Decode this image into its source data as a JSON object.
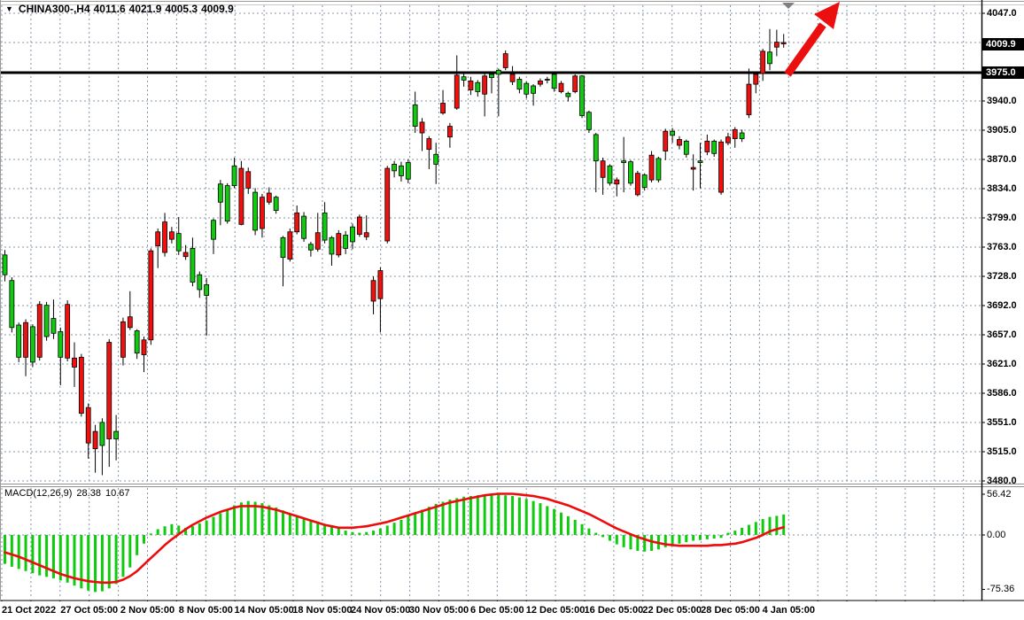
{
  "window": {
    "dropdown_icon": "triangle-down",
    "symbol_period": "CHINA300-,H4",
    "ohlc": {
      "open": "4011.6",
      "high": "4021.9",
      "low": "4005.3",
      "close": "4009.9"
    }
  },
  "price_axis": {
    "ticks": [
      "4047.0",
      "3940.0",
      "3905.0",
      "3870.0",
      "3834.0",
      "3799.0",
      "3763.0",
      "3728.0",
      "3692.0",
      "3657.0",
      "3621.0",
      "3586.0",
      "3551.0",
      "3515.0",
      "3480.0"
    ],
    "tick_rows": [
      0,
      3,
      4,
      5,
      6,
      7,
      8,
      9,
      10,
      11,
      12,
      13,
      14,
      15,
      16
    ],
    "highlighted": [
      {
        "text": "4009.9",
        "price": 4009.9,
        "role": "last-price"
      },
      {
        "text": "3975.0",
        "price": 3975.0,
        "role": "line-level"
      }
    ]
  },
  "indicator_panel": {
    "name": "MACD(12,26,9)",
    "value_main": "28.38",
    "value_signal": "10.67",
    "axis_labels": [
      {
        "text": "56.42",
        "value": 56.42
      },
      {
        "text": "0.00",
        "value": 0
      },
      {
        "text": "-75.36",
        "value": -75.36
      }
    ]
  },
  "time_axis": {
    "labels": [
      "21 Oct 2022",
      "27 Oct 05:00",
      "2 Nov 05:00",
      "8 Nov 05:00",
      "14 Nov 05:00",
      "18 Nov 05:00",
      "24 Nov 05:00",
      "30 Nov 05:00",
      "6 Dec 05:00",
      "12 Dec 05:00",
      "16 Dec 05:00",
      "22 Dec 05:00",
      "28 Dec 05:00",
      "4 Jan 05:00"
    ]
  },
  "colors": {
    "background": "#ffffff",
    "grid": "#8494a8",
    "bull": "#0ecb0e",
    "bear": "#ef1010",
    "wick": "#000000",
    "candle_border": "#000000",
    "macd_histogram": "#0ecb0e",
    "macd_signal": "#ee0b0b",
    "level_line": "#000000",
    "arrow": "#ec0f0f",
    "scroll_marker": "#808080",
    "axis_line": "#000000",
    "panel_border": "#909090"
  },
  "chart_data": {
    "type": "candlestick",
    "symbol": "CHINA300",
    "timeframe": "H4",
    "price_range": [
      3480,
      4047
    ],
    "grid_step": 35.4375,
    "last_bar": {
      "open": 4011.6,
      "high": 4021.9,
      "low": 4005.3,
      "close": 4009.9
    },
    "objects": [
      {
        "type": "horizontal_line",
        "price": 3975.0,
        "color": "#000000",
        "width": 3
      },
      {
        "type": "arrow_up_right",
        "color": "#ec0f0f"
      },
      {
        "type": "scroll_marker_down",
        "color": "#808080"
      }
    ],
    "candles": [
      [
        3730,
        3760,
        3722,
        3754
      ],
      [
        3666,
        3727,
        3660,
        3723
      ],
      [
        3630,
        3672,
        3624,
        3669
      ],
      [
        3672,
        3676,
        3607,
        3630
      ],
      [
        3624,
        3670,
        3618,
        3667
      ],
      [
        3694,
        3698,
        3626,
        3630
      ],
      [
        3655,
        3697,
        3650,
        3693
      ],
      [
        3659,
        3700,
        3652,
        3677
      ],
      [
        3630,
        3666,
        3596,
        3661
      ],
      [
        3694,
        3699,
        3625,
        3629
      ],
      [
        3629,
        3648,
        3594,
        3618
      ],
      [
        3630,
        3634,
        3558,
        3562
      ],
      [
        3569,
        3574,
        3507,
        3526
      ],
      [
        3540,
        3548,
        3490,
        3519
      ],
      [
        3523,
        3556,
        3487,
        3551
      ],
      [
        3648,
        3652,
        3497,
        3531
      ],
      [
        3531,
        3560,
        3505,
        3540
      ],
      [
        3673,
        3678,
        3620,
        3630
      ],
      [
        3679,
        3710,
        3663,
        3666
      ],
      [
        3635,
        3664,
        3628,
        3662
      ],
      [
        3651,
        3655,
        3612,
        3633
      ],
      [
        3759,
        3762,
        3645,
        3651
      ],
      [
        3782,
        3786,
        3738,
        3765
      ],
      [
        3794,
        3805,
        3752,
        3757
      ],
      [
        3782,
        3788,
        3768,
        3773
      ],
      [
        3759,
        3800,
        3754,
        3780
      ],
      [
        3757,
        3766,
        3748,
        3752
      ],
      [
        3721,
        3775,
        3716,
        3762
      ],
      [
        3712,
        3734,
        3702,
        3730
      ],
      [
        3705,
        3726,
        3656,
        3718
      ],
      [
        3773,
        3798,
        3755,
        3796
      ],
      [
        3818,
        3845,
        3790,
        3840
      ],
      [
        3795,
        3841,
        3792,
        3838
      ],
      [
        3838,
        3872,
        3835,
        3862
      ],
      [
        3859,
        3868,
        3790,
        3791
      ],
      [
        3855,
        3860,
        3828,
        3835
      ],
      [
        3784,
        3835,
        3778,
        3830
      ],
      [
        3824,
        3828,
        3775,
        3786
      ],
      [
        3829,
        3836,
        3815,
        3818
      ],
      [
        3808,
        3826,
        3804,
        3824
      ],
      [
        3751,
        3777,
        3716,
        3775
      ],
      [
        3782,
        3786,
        3746,
        3749
      ],
      [
        3805,
        3814,
        3779,
        3782
      ],
      [
        3774,
        3806,
        3770,
        3801
      ],
      [
        3760,
        3770,
        3752,
        3767
      ],
      [
        3781,
        3805,
        3758,
        3761
      ],
      [
        3772,
        3818,
        3768,
        3805
      ],
      [
        3755,
        3777,
        3741,
        3775
      ],
      [
        3780,
        3784,
        3751,
        3754
      ],
      [
        3762,
        3783,
        3755,
        3778
      ],
      [
        3770,
        3792,
        3761,
        3788
      ],
      [
        3800,
        3803,
        3776,
        3779
      ],
      [
        3781,
        3802,
        3772,
        3776
      ],
      [
        3723,
        3728,
        3682,
        3698
      ],
      [
        3735,
        3739,
        3660,
        3701
      ],
      [
        3859,
        3862,
        3768,
        3771
      ],
      [
        3856,
        3868,
        3848,
        3864
      ],
      [
        3850,
        3867,
        3843,
        3862
      ],
      [
        3846,
        3870,
        3841,
        3866
      ],
      [
        3910,
        3952,
        3902,
        3936
      ],
      [
        3915,
        3920,
        3880,
        3902
      ],
      [
        3895,
        3898,
        3858,
        3882
      ],
      [
        3864,
        3890,
        3840,
        3876
      ],
      [
        3938,
        3954,
        3924,
        3926
      ],
      [
        3910,
        3914,
        3884,
        3897
      ],
      [
        3972,
        3996,
        3930,
        3932
      ],
      [
        3966,
        3974,
        3958,
        3970
      ],
      [
        3965,
        3970,
        3948,
        3954
      ],
      [
        3952,
        3966,
        3946,
        3963
      ],
      [
        3971,
        3975,
        3922,
        3949
      ],
      [
        3969,
        3976,
        3950,
        3973
      ],
      [
        3973,
        3980,
        3922,
        3978
      ],
      [
        3998,
        4002,
        3978,
        3981
      ],
      [
        3973,
        3983,
        3960,
        3964
      ],
      [
        3955,
        3970,
        3950,
        3967
      ],
      [
        3949,
        3964,
        3944,
        3962
      ],
      [
        3950,
        3961,
        3935,
        3959
      ],
      [
        3965,
        3968,
        3958,
        3961
      ],
      [
        3967,
        3970,
        3962,
        3966
      ],
      [
        3956,
        3974,
        3952,
        3973
      ],
      [
        3962,
        3965,
        3950,
        3952
      ],
      [
        3946,
        3952,
        3940,
        3950
      ],
      [
        3971,
        3973,
        3950,
        3952
      ],
      [
        3923,
        3972,
        3920,
        3971
      ],
      [
        3906,
        3929,
        3902,
        3927
      ],
      [
        3868,
        3902,
        3830,
        3900
      ],
      [
        3868,
        3872,
        3827,
        3848
      ],
      [
        3841,
        3864,
        3838,
        3862
      ],
      [
        3845,
        3848,
        3825,
        3840
      ],
      [
        3866,
        3897,
        3830,
        3868
      ],
      [
        3841,
        3869,
        3838,
        3867
      ],
      [
        3853,
        3856,
        3825,
        3827
      ],
      [
        3836,
        3853,
        3832,
        3851
      ],
      [
        3875,
        3880,
        3842,
        3845
      ],
      [
        3845,
        3873,
        3842,
        3871
      ],
      [
        3904,
        3907,
        3869,
        3880
      ],
      [
        3899,
        3908,
        3890,
        3904
      ],
      [
        3894,
        3898,
        3882,
        3887
      ],
      [
        3876,
        3894,
        3872,
        3892
      ],
      [
        3860,
        3876,
        3832,
        3858
      ],
      [
        3866,
        3890,
        3835,
        3868
      ],
      [
        3892,
        3900,
        3875,
        3879
      ],
      [
        3877,
        3894,
        3873,
        3892
      ],
      [
        3891,
        3894,
        3827,
        3830
      ],
      [
        3897,
        3902,
        3887,
        3890
      ],
      [
        3906,
        3909,
        3884,
        3895
      ],
      [
        3895,
        3906,
        3891,
        3902
      ],
      [
        3961,
        3980,
        3920,
        3924
      ],
      [
        3973,
        3976,
        3950,
        3961
      ],
      [
        4001,
        4004,
        3965,
        3974
      ],
      [
        3986,
        4028,
        3978,
        4000
      ],
      [
        4012,
        4027,
        3995,
        4006
      ],
      [
        4011.6,
        4021.9,
        4005.3,
        4009.9
      ]
    ],
    "macd": {
      "range": [
        -75.36,
        56.42
      ],
      "histogram": [
        -40,
        -44,
        -47,
        -50,
        -53,
        -56,
        -58,
        -60,
        -63,
        -66,
        -70,
        -74,
        -77,
        -79,
        -78,
        -74,
        -68,
        -58,
        -45,
        -28,
        -12,
        2,
        8,
        12,
        15,
        13,
        10,
        12,
        16,
        20,
        25,
        30,
        36,
        41,
        45,
        47,
        46,
        44,
        41,
        38,
        34,
        30,
        27,
        24,
        21,
        18,
        15,
        12,
        9,
        6,
        4,
        3,
        4,
        6,
        9,
        13,
        17,
        21,
        26,
        31,
        35,
        39,
        43,
        46,
        49,
        51,
        53,
        54,
        55,
        56,
        56.42,
        56,
        55,
        54,
        52,
        50,
        47,
        44,
        40,
        36,
        31,
        26,
        21,
        15,
        9,
        3,
        -3,
        -8,
        -13,
        -17,
        -20,
        -22,
        -23,
        -22,
        -20,
        -17,
        -14,
        -12,
        -10,
        -8,
        -7,
        -6,
        -5,
        -4,
        3,
        6,
        10,
        14,
        18,
        22,
        25,
        26.5,
        28.38
      ],
      "signal": [
        -24,
        -27,
        -30,
        -34,
        -38,
        -42,
        -46,
        -50,
        -54,
        -57,
        -60,
        -62,
        -64,
        -65,
        -66,
        -66,
        -65,
        -62,
        -57,
        -50,
        -41,
        -32,
        -23,
        -14,
        -6,
        1,
        8,
        14,
        19,
        24,
        28,
        32,
        35,
        38,
        40,
        40,
        40,
        39,
        37,
        35,
        32,
        29,
        26,
        23,
        20,
        17,
        14,
        12,
        10,
        10,
        10,
        11,
        12,
        14,
        16,
        18,
        21,
        24,
        27,
        30,
        33,
        36,
        39,
        42,
        45,
        47,
        49,
        51,
        53,
        55,
        56,
        57,
        57,
        57,
        56,
        55,
        54,
        52,
        50,
        47,
        44,
        41,
        37,
        33,
        29,
        24,
        19,
        14,
        9,
        5,
        1,
        -3,
        -6,
        -9,
        -11,
        -13,
        -14,
        -15,
        -15,
        -15,
        -15,
        -15,
        -14,
        -14,
        -13,
        -12,
        -10,
        -7,
        -4,
        0,
        5,
        8,
        10.67
      ]
    }
  }
}
